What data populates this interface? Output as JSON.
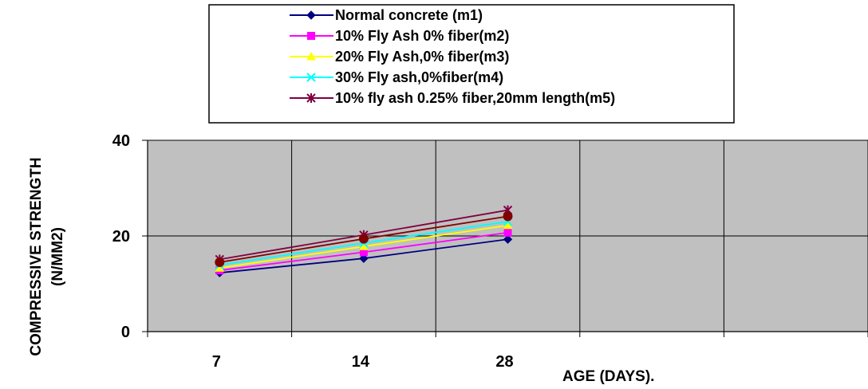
{
  "chart_data": {
    "type": "line",
    "categories": [
      "7",
      "14",
      "28"
    ],
    "xlabel": "AGE (DAYS).",
    "ylabel_line1": "COMPRESSIVE STRENGTH",
    "ylabel_line2": "(N/MM2)",
    "ylim": [
      0,
      40
    ],
    "yticks": [
      "0",
      "20",
      "40"
    ],
    "x_slots": 5,
    "grid": true,
    "plot_background": "#c0c0c0",
    "legend_position": "top",
    "series": [
      {
        "name": "Normal concrete (m1)",
        "values": [
          12.3,
          15.3,
          19.3
        ],
        "color": "#000080",
        "marker": "diamond"
      },
      {
        "name": "10% Fly  Ash 0% fiber(m2)",
        "values": [
          12.8,
          16.6,
          20.7
        ],
        "color": "#ff00ff",
        "marker": "square"
      },
      {
        "name": " 20% Fly Ash,0% fiber(m3)",
        "values": [
          13.3,
          17.8,
          22.2
        ],
        "color": "#ffff00",
        "marker": "triangle"
      },
      {
        "name": "30% Fly ash,0%fiber(m4)",
        "values": [
          13.9,
          18.5,
          23.0
        ],
        "color": "#00ffff",
        "marker": "x"
      },
      {
        "name": "10% fly ash 0.25% fiber,20mm length(m5)",
        "values": [
          15.1,
          20.2,
          25.4
        ],
        "color": "#800040",
        "marker": "star"
      },
      {
        "name": "",
        "values": [
          14.5,
          19.4,
          24.1
        ],
        "color": "#800000",
        "marker": "circle"
      }
    ]
  }
}
